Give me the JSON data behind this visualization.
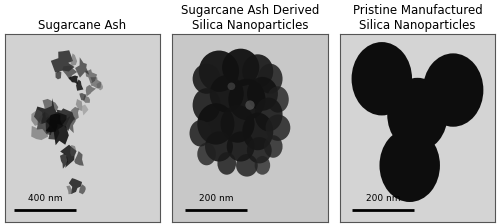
{
  "titles": [
    "Sugarcane Ash",
    "Sugarcane Ash Derived\nSilica Nanoparticles",
    "Pristine Manufactured\nSilica Nanoparticles"
  ],
  "scale_labels": [
    "400 nm",
    "200 nm",
    "200 nm"
  ],
  "figure_bg": "#ffffff",
  "title_fontsize": 8.5,
  "scale_fontsize": 6.5,
  "panel_bg_1": "#d2d2d2",
  "panel_bg_2": "#c8c8c8",
  "panel_bg_3": "#d4d4d4",
  "border_color": "#555555",
  "particle_very_dark": "#111111",
  "particle_dark": "#1e1e1e",
  "particle_mid": "#303030",
  "particle_light": "#505050",
  "particle_translucent": "#707070"
}
